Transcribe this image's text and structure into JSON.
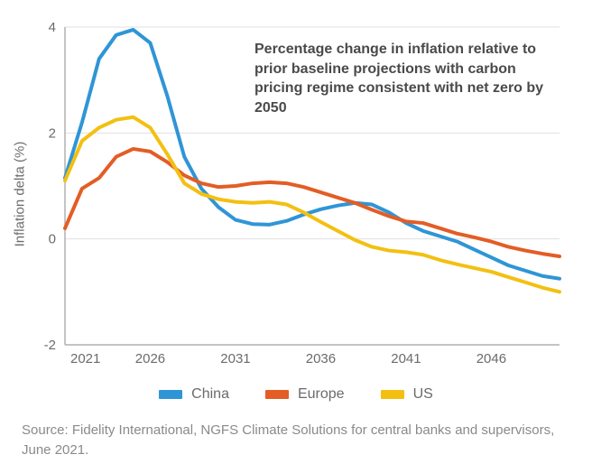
{
  "chart": {
    "type": "line",
    "ylabel": "Inflation delta (%)",
    "caption": "Percentage change in inflation relative to prior baseline projections with carbon pricing regime consistent with net zero by 2050",
    "source": "Source: Fidelity International, NGFS Climate Solutions for central banks and supervisors, June 2021.",
    "xlim": [
      2021,
      2050
    ],
    "ylim": [
      -2,
      4
    ],
    "xticks": [
      2021,
      2026,
      2031,
      2036,
      2041,
      2046
    ],
    "yticks": [
      -2,
      0,
      2,
      4
    ],
    "grid_color": "#e0e0e0",
    "axis_color": "#b0b0b0",
    "background_color": "#ffffff",
    "line_width": 4,
    "label_fontsize": 15,
    "caption_fontsize": 16,
    "series": [
      {
        "name": "China",
        "color": "#2f95d6",
        "x": [
          2021,
          2022,
          2023,
          2024,
          2025,
          2026,
          2027,
          2028,
          2029,
          2030,
          2031,
          2032,
          2033,
          2034,
          2035,
          2036,
          2037,
          2038,
          2039,
          2040,
          2041,
          2042,
          2043,
          2044,
          2045,
          2046,
          2047,
          2048,
          2049,
          2050
        ],
        "y": [
          1.15,
          2.2,
          3.4,
          3.85,
          3.95,
          3.7,
          2.7,
          1.55,
          0.95,
          0.6,
          0.36,
          0.28,
          0.27,
          0.34,
          0.46,
          0.56,
          0.63,
          0.68,
          0.65,
          0.5,
          0.3,
          0.15,
          0.05,
          -0.05,
          -0.2,
          -0.35,
          -0.5,
          -0.6,
          -0.7,
          -0.75
        ]
      },
      {
        "name": "Europe",
        "color": "#e35d25",
        "x": [
          2021,
          2022,
          2023,
          2024,
          2025,
          2026,
          2027,
          2028,
          2029,
          2030,
          2031,
          2032,
          2033,
          2034,
          2035,
          2036,
          2037,
          2038,
          2039,
          2040,
          2041,
          2042,
          2043,
          2044,
          2045,
          2046,
          2047,
          2048,
          2049,
          2050
        ],
        "y": [
          0.2,
          0.95,
          1.15,
          1.55,
          1.7,
          1.65,
          1.45,
          1.2,
          1.05,
          0.98,
          1.0,
          1.05,
          1.07,
          1.05,
          0.98,
          0.88,
          0.78,
          0.68,
          0.55,
          0.43,
          0.33,
          0.3,
          0.2,
          0.1,
          0.03,
          -0.05,
          -0.15,
          -0.22,
          -0.28,
          -0.33
        ]
      },
      {
        "name": "US",
        "color": "#f3c012",
        "x": [
          2021,
          2022,
          2023,
          2024,
          2025,
          2026,
          2027,
          2028,
          2029,
          2030,
          2031,
          2032,
          2033,
          2034,
          2035,
          2036,
          2037,
          2038,
          2039,
          2040,
          2041,
          2042,
          2043,
          2044,
          2045,
          2046,
          2047,
          2048,
          2049,
          2050
        ],
        "y": [
          1.1,
          1.85,
          2.1,
          2.25,
          2.3,
          2.1,
          1.6,
          1.05,
          0.85,
          0.75,
          0.7,
          0.68,
          0.7,
          0.65,
          0.5,
          0.32,
          0.15,
          -0.02,
          -0.15,
          -0.22,
          -0.25,
          -0.3,
          -0.4,
          -0.48,
          -0.55,
          -0.62,
          -0.72,
          -0.82,
          -0.92,
          -1.0
        ]
      }
    ]
  }
}
